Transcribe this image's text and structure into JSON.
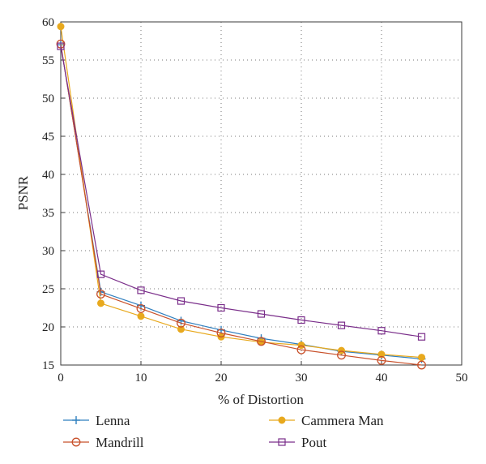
{
  "chart_data": {
    "type": "line",
    "xlabel": "% of Distortion",
    "ylabel": "PSNR",
    "xlim": [
      0,
      50
    ],
    "ylim": [
      15,
      60
    ],
    "xticks": [
      0,
      10,
      20,
      30,
      40,
      50
    ],
    "yticks": [
      15,
      20,
      25,
      30,
      35,
      40,
      45,
      50,
      55,
      60
    ],
    "grid": true,
    "legend_position": "bottom",
    "series": [
      {
        "name": "Lenna",
        "color": "#2f7fbf",
        "marker": "plus",
        "x": [
          0,
          5,
          10,
          15,
          20,
          25,
          30,
          35,
          40,
          45
        ],
        "y": [
          57.0,
          24.6,
          22.8,
          20.8,
          19.6,
          18.5,
          17.7,
          16.8,
          16.3,
          15.8
        ]
      },
      {
        "name": "Cammera Man",
        "color": "#e8a91e",
        "marker": "filled-circle",
        "x": [
          0,
          5,
          10,
          15,
          20,
          25,
          30,
          35,
          40,
          45
        ],
        "y": [
          59.4,
          23.1,
          21.4,
          19.7,
          18.7,
          18.0,
          17.6,
          16.9,
          16.4,
          16.0
        ]
      },
      {
        "name": "Mandrill",
        "color": "#c8502a",
        "marker": "open-circle",
        "x": [
          0,
          5,
          10,
          15,
          20,
          25,
          30,
          35,
          40,
          45
        ],
        "y": [
          57.1,
          24.3,
          22.4,
          20.5,
          19.2,
          18.1,
          17.0,
          16.3,
          15.6,
          15.0
        ]
      },
      {
        "name": "Pout",
        "color": "#7a2e8a",
        "marker": "open-square",
        "x": [
          0,
          5,
          10,
          15,
          20,
          25,
          30,
          35,
          40,
          45
        ],
        "y": [
          56.8,
          26.9,
          24.8,
          23.4,
          22.5,
          21.7,
          20.9,
          20.2,
          19.5,
          18.7
        ]
      }
    ]
  }
}
